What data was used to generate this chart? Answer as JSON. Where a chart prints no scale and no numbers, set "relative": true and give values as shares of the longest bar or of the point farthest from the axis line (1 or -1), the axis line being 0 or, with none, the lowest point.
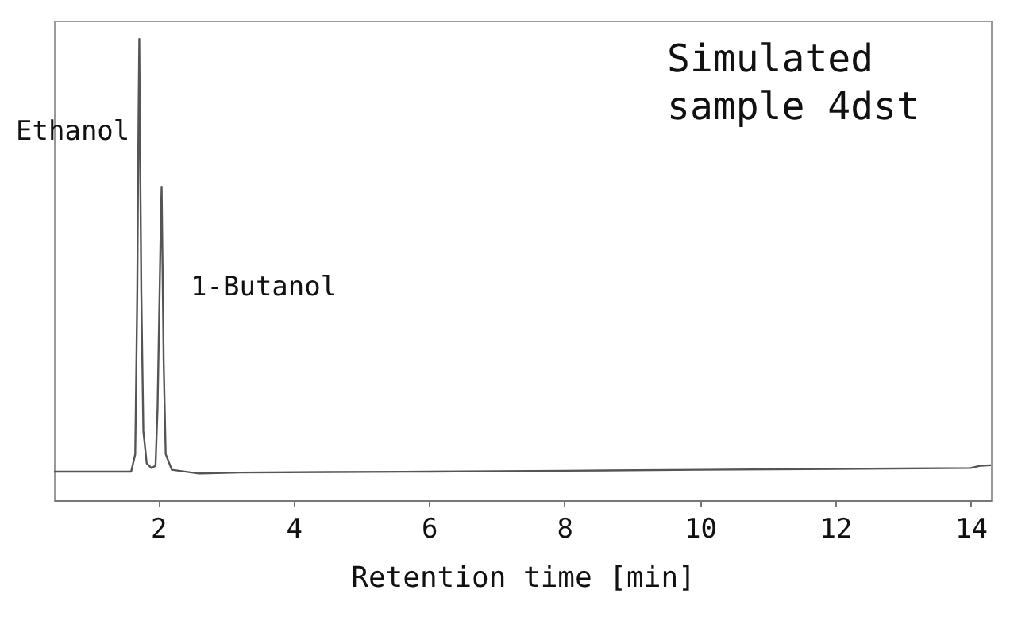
{
  "chart_data": {
    "type": "line",
    "title": "Simulated sample 4dst",
    "xlabel": "Retention time [min]",
    "relative": true,
    "x": [
      0.46,
      1.0,
      1.6,
      1.66,
      1.69,
      1.71,
      1.72,
      1.73,
      1.75,
      1.78,
      1.83,
      1.9,
      1.96,
      1.99,
      2.02,
      2.04,
      2.05,
      2.06,
      2.08,
      2.11,
      2.2,
      2.6,
      3.2,
      4.5,
      6,
      8,
      10,
      12,
      14,
      14.15,
      14.3
    ],
    "series": [
      {
        "color": "#555555",
        "values": [
          0.062,
          0.062,
          0.062,
          0.1,
          0.45,
          0.85,
          1.0,
          0.8,
          0.45,
          0.15,
          0.08,
          0.07,
          0.075,
          0.2,
          0.45,
          0.62,
          0.68,
          0.55,
          0.3,
          0.1,
          0.066,
          0.058,
          0.06,
          0.061,
          0.062,
          0.064,
          0.066,
          0.068,
          0.07,
          0.075,
          0.076
        ]
      }
    ],
    "xlim": [
      0.46,
      14.3
    ],
    "xticks": [
      2,
      4,
      6,
      8,
      10,
      12,
      14
    ],
    "grid": false,
    "marker": "none",
    "line_style": "solid",
    "annotations": [
      "Ethanol",
      "1-Butanol"
    ]
  }
}
